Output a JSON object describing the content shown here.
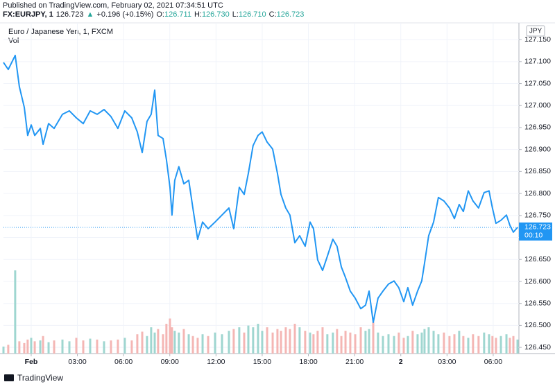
{
  "chart_data": {
    "type": "line",
    "published": "Published on TradingView.com, February 02, 2021 07:34:51 UTC",
    "symbol": "FX:EURJPY, 1",
    "last": "126.723",
    "change_arrow": "▲",
    "change": "+0.196 (+0.15%)",
    "ohlc": [
      {
        "key": "O:",
        "val": "126.711"
      },
      {
        "key": "H:",
        "val": "126.730"
      },
      {
        "key": "L:",
        "val": "126.710"
      },
      {
        "key": "C:",
        "val": "126.723"
      }
    ],
    "title": "Euro / Japanese Yen, 1, FXCM",
    "volume_label": "Vol",
    "currency": "JPY",
    "last_price": {
      "value": 126.723,
      "label": "126.723"
    },
    "countdown": "00:10",
    "brand": "TradingView",
    "color": "#2196f3",
    "volume_up_color": "#9fd6d0",
    "volume_down_color": "#f4b6b4",
    "grid": true,
    "xlim": [
      -1.8,
      31.67
    ],
    "xticks": [
      {
        "value": 0,
        "label": "Feb"
      },
      {
        "value": 3,
        "label": "03:00"
      },
      {
        "value": 6,
        "label": "06:00"
      },
      {
        "value": 9,
        "label": "09:00"
      },
      {
        "value": 12,
        "label": "12:00"
      },
      {
        "value": 15,
        "label": "15:00"
      },
      {
        "value": 18,
        "label": "18:00"
      },
      {
        "value": 21,
        "label": "21:00"
      },
      {
        "value": 24,
        "label": "2"
      },
      {
        "value": 27,
        "label": "03:00"
      },
      {
        "value": 30,
        "label": "06:00"
      }
    ],
    "ylim": [
      126.436,
      127.188
    ],
    "yticks": [
      {
        "value": 126.45,
        "label": "126.450"
      },
      {
        "value": 126.5,
        "label": "126.500"
      },
      {
        "value": 126.55,
        "label": "126.550"
      },
      {
        "value": 126.6,
        "label": "126.600"
      },
      {
        "value": 126.65,
        "label": "126.650"
      },
      {
        "value": 126.7,
        "label": "126.700"
      },
      {
        "value": 126.75,
        "label": "126.750"
      },
      {
        "value": 126.8,
        "label": "126.800"
      },
      {
        "value": 126.85,
        "label": "126.850"
      },
      {
        "value": 126.9,
        "label": "126.900"
      },
      {
        "value": 126.95,
        "label": "126.950"
      },
      {
        "value": 127,
        "label": "127.000"
      },
      {
        "value": 127.05,
        "label": "127.050"
      },
      {
        "value": 127.1,
        "label": "127.100"
      },
      {
        "value": 127.15,
        "label": "127.150"
      }
    ],
    "x": [
      -1.8,
      -1.49,
      -1.04,
      -0.77,
      -0.45,
      -0.23,
      0,
      0.23,
      0.59,
      0.77,
      1.13,
      1.49,
      2.03,
      2.48,
      2.93,
      3.38,
      3.83,
      4.28,
      4.73,
      5.18,
      5.63,
      6.08,
      6.53,
      6.89,
      7.21,
      7.52,
      7.79,
      8.02,
      8.24,
      8.56,
      8.78,
      9.01,
      9.14,
      9.32,
      9.59,
      9.91,
      10.23,
      10.5,
      10.81,
      11.13,
      11.49,
      11.94,
      12.39,
      12.84,
      13.15,
      13.51,
      13.83,
      14.1,
      14.41,
      14.73,
      15,
      15.32,
      15.68,
      15.99,
      16.22,
      16.53,
      16.8,
      17.12,
      17.43,
      17.79,
      18.11,
      18.33,
      18.6,
      18.92,
      19.23,
      19.59,
      19.86,
      20.14,
      20.41,
      20.72,
      21.04,
      21.4,
      21.71,
      21.94,
      22.21,
      22.52,
      22.84,
      23.2,
      23.56,
      23.87,
      24.19,
      24.46,
      24.77,
      25.09,
      25.36,
      25.54,
      25.81,
      26.13,
      26.44,
      26.8,
      27.16,
      27.48,
      27.79,
      28.06,
      28.38,
      28.69,
      29.05,
      29.41,
      29.73,
      29.95,
      30.18,
      30.5,
      30.86,
      31.08,
      31.31,
      31.58
    ],
    "values": [
      127.098,
      127.082,
      127.114,
      127.043,
      126.996,
      126.932,
      126.956,
      126.932,
      126.948,
      126.912,
      126.959,
      126.948,
      126.98,
      126.988,
      126.972,
      126.959,
      126.988,
      126.98,
      126.991,
      126.975,
      126.948,
      126.988,
      126.972,
      126.94,
      126.893,
      126.964,
      126.98,
      127.035,
      126.932,
      126.925,
      126.877,
      126.814,
      126.751,
      126.83,
      126.861,
      126.822,
      126.83,
      126.767,
      126.696,
      126.735,
      126.72,
      126.735,
      126.751,
      126.767,
      126.72,
      126.814,
      126.798,
      126.846,
      126.909,
      126.932,
      126.94,
      126.917,
      126.901,
      126.846,
      126.798,
      126.767,
      126.751,
      126.688,
      126.704,
      126.68,
      126.735,
      126.72,
      126.649,
      126.625,
      126.657,
      126.696,
      126.68,
      126.633,
      126.609,
      126.578,
      126.562,
      126.538,
      126.546,
      126.578,
      126.507,
      126.562,
      126.578,
      126.594,
      126.601,
      126.586,
      126.554,
      126.586,
      126.546,
      126.578,
      126.601,
      126.641,
      126.704,
      126.735,
      126.791,
      126.783,
      126.767,
      126.743,
      126.775,
      126.759,
      126.806,
      126.783,
      126.767,
      126.802,
      126.806,
      126.767,
      126.732,
      126.739,
      126.751,
      126.728,
      126.712,
      126.723
    ],
    "volume": [
      8,
      10,
      95,
      14,
      12,
      16,
      18,
      14,
      15,
      20,
      13,
      15,
      16,
      14,
      18,
      15,
      17,
      16,
      14,
      15,
      16,
      18,
      15,
      22,
      25,
      20,
      30,
      24,
      28,
      22,
      34,
      40,
      30,
      26,
      24,
      28,
      22,
      20,
      18,
      22,
      20,
      24,
      22,
      26,
      28,
      30,
      24,
      32,
      30,
      34,
      26,
      30,
      24,
      28,
      26,
      30,
      28,
      34,
      30,
      26,
      24,
      22,
      26,
      30,
      22,
      24,
      28,
      20,
      26,
      24,
      22,
      30,
      26,
      28,
      36,
      24,
      20,
      22,
      20,
      24,
      18,
      20,
      26,
      22,
      24,
      28,
      30,
      26,
      22,
      24,
      20,
      22,
      26,
      20,
      18,
      22,
      20,
      24,
      22,
      20,
      18,
      20,
      22,
      18,
      20,
      16
    ]
  }
}
